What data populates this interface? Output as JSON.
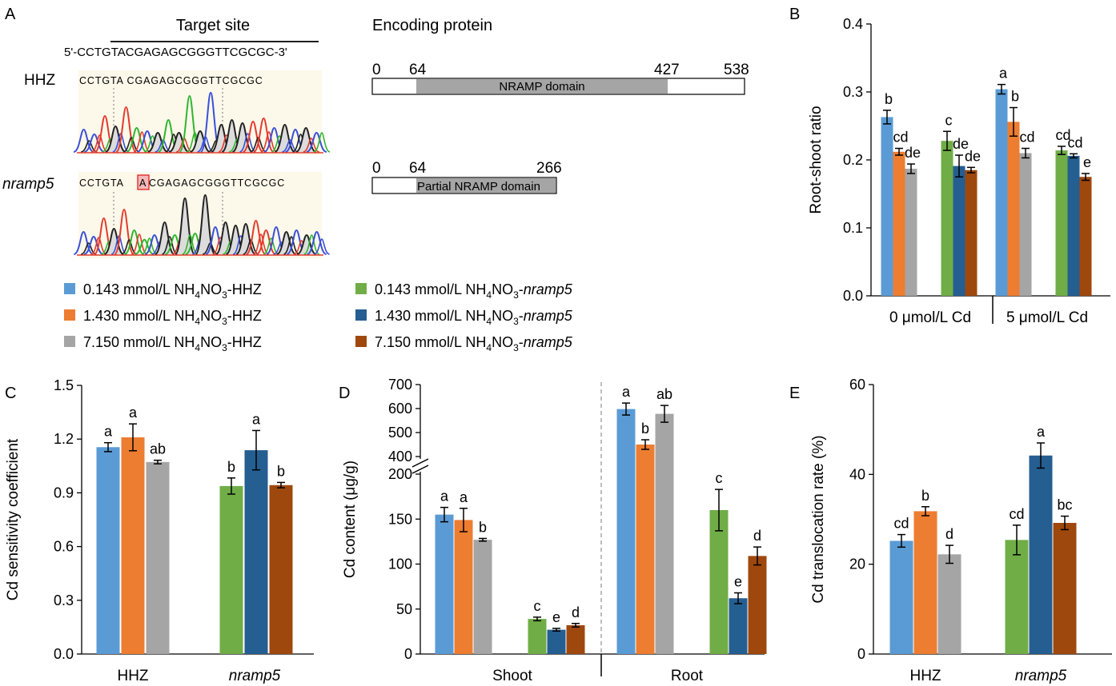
{
  "colors": [
    "#5b9bd5",
    "#ed7d31",
    "#a5a5a5",
    "#70ad47",
    "#255e91",
    "#9e480e"
  ],
  "panel_a": {
    "label": "A",
    "target_title": "Target site",
    "sequence": "5'-CCTGTACGAGAGCGGGTTCGCGC-3'",
    "wt_label": "HHZ",
    "mut_label": "nramp5",
    "wt_chrom_seq": "CCTGTA CGAGAGCGGGTTCGCGC",
    "mut_chrom_seq_1": "CCTGTA",
    "mut_chrom_insert": "A",
    "mut_chrom_seq_2": "CGAGAGCGGGTTCGCGC",
    "protein_title": "Encoding protein",
    "wt_protein": {
      "start": "0",
      "domain_start": "64",
      "domain_end": "427",
      "end": "538",
      "domain_label": "NRAMP domain"
    },
    "mut_protein": {
      "start": "0",
      "domain_start": "64",
      "end": "266",
      "domain_label": "Partial NRAMP domain"
    }
  },
  "legend": [
    {
      "prefix": "0.143 mmol/L NH",
      "sub1": "4",
      "mid": "NO",
      "sub2": "3",
      "suffix": "-HHZ",
      "italic": false
    },
    {
      "prefix": "1.430 mmol/L NH",
      "sub1": "4",
      "mid": "NO",
      "sub2": "3",
      "suffix": "-HHZ",
      "italic": false
    },
    {
      "prefix": "7.150 mmol/L NH",
      "sub1": "4",
      "mid": "NO",
      "sub2": "3",
      "suffix": "-HHZ",
      "italic": false
    },
    {
      "prefix": "0.143 mmol/L NH",
      "sub1": "4",
      "mid": "NO",
      "sub2": "3",
      "suffix": "-",
      "suffix_italic": "nramp5",
      "italic": true
    },
    {
      "prefix": "1.430 mmol/L NH",
      "sub1": "4",
      "mid": "NO",
      "sub2": "3",
      "suffix": "-",
      "suffix_italic": "nramp5",
      "italic": true
    },
    {
      "prefix": "7.150 mmol/L NH",
      "sub1": "4",
      "mid": "NO",
      "sub2": "3",
      "suffix": "-",
      "suffix_italic": "nramp5",
      "italic": true
    }
  ],
  "chart_data": [
    {
      "panel": "B",
      "type": "bar",
      "ylabel": "Root-shoot ratio",
      "ylim": [
        0,
        0.4
      ],
      "yticks": [
        "0.0",
        "0.1",
        "0.2",
        "0.3",
        "0.4"
      ],
      "groups": [
        "0 μmol/L Cd",
        "5 μmol/L Cd"
      ],
      "bars": [
        {
          "group": 0,
          "sub": 0,
          "value": 0.263,
          "err": 0.01,
          "letter": "b"
        },
        {
          "group": 0,
          "sub": 1,
          "value": 0.212,
          "err": 0.005,
          "letter": "cd"
        },
        {
          "group": 0,
          "sub": 2,
          "value": 0.187,
          "err": 0.007,
          "letter": "de"
        },
        {
          "group": 0,
          "sub": 3,
          "value": 0.228,
          "err": 0.014,
          "letter": "c"
        },
        {
          "group": 0,
          "sub": 4,
          "value": 0.191,
          "err": 0.016,
          "letter": "de"
        },
        {
          "group": 0,
          "sub": 5,
          "value": 0.185,
          "err": 0.004,
          "letter": "de"
        },
        {
          "group": 1,
          "sub": 0,
          "value": 0.304,
          "err": 0.007,
          "letter": "a"
        },
        {
          "group": 1,
          "sub": 1,
          "value": 0.256,
          "err": 0.021,
          "letter": "b"
        },
        {
          "group": 1,
          "sub": 2,
          "value": 0.21,
          "err": 0.007,
          "letter": "cd"
        },
        {
          "group": 1,
          "sub": 3,
          "value": 0.214,
          "err": 0.006,
          "letter": "cd"
        },
        {
          "group": 1,
          "sub": 4,
          "value": 0.206,
          "err": 0.003,
          "letter": "cd"
        },
        {
          "group": 1,
          "sub": 5,
          "value": 0.175,
          "err": 0.005,
          "letter": "e"
        }
      ]
    },
    {
      "panel": "C",
      "type": "bar",
      "ylabel": "Cd sensitivity coefficient",
      "ylim": [
        0,
        1.5
      ],
      "yticks": [
        "0.0",
        "0.3",
        "0.6",
        "0.9",
        "1.2",
        "1.5"
      ],
      "groups": [
        "HHZ",
        "nramp5"
      ],
      "bars": [
        {
          "sub": 0,
          "value": 1.155,
          "err": 0.025,
          "letter": "a"
        },
        {
          "sub": 1,
          "value": 1.21,
          "err": 0.075,
          "letter": "a"
        },
        {
          "sub": 2,
          "value": 1.072,
          "err": 0.01,
          "letter": "ab"
        },
        {
          "sub": 3,
          "value": 0.938,
          "err": 0.045,
          "letter": "b"
        },
        {
          "sub": 4,
          "value": 1.138,
          "err": 0.11,
          "letter": "a"
        },
        {
          "sub": 5,
          "value": 0.943,
          "err": 0.015,
          "letter": "b"
        }
      ]
    },
    {
      "panel": "D",
      "type": "bar",
      "ylabel": "Cd content (μg/g)",
      "ylim_lower": [
        0,
        200
      ],
      "ylim_upper": [
        400,
        700
      ],
      "yticks_lower": [
        "0",
        "50",
        "100",
        "150",
        "200"
      ],
      "yticks_upper": [
        "400",
        "500",
        "600",
        "700"
      ],
      "groups": [
        "Shoot",
        "Root"
      ],
      "bars": [
        {
          "group": 0,
          "sub": 0,
          "value": 155,
          "err": 8,
          "letter": "a"
        },
        {
          "group": 0,
          "sub": 1,
          "value": 149,
          "err": 13,
          "letter": "a"
        },
        {
          "group": 0,
          "sub": 2,
          "value": 127,
          "err": 1.5,
          "letter": "b"
        },
        {
          "group": 0,
          "sub": 3,
          "value": 39,
          "err": 2,
          "letter": "c"
        },
        {
          "group": 0,
          "sub": 4,
          "value": 27,
          "err": 1.5,
          "letter": "e"
        },
        {
          "group": 0,
          "sub": 5,
          "value": 32,
          "err": 2,
          "letter": "d"
        },
        {
          "group": 1,
          "sub": 0,
          "value": 598,
          "err": 25,
          "letter": "a"
        },
        {
          "group": 1,
          "sub": 1,
          "value": 450,
          "err": 20,
          "letter": "b"
        },
        {
          "group": 1,
          "sub": 2,
          "value": 578,
          "err": 35,
          "letter": "ab"
        },
        {
          "group": 1,
          "sub": 3,
          "value": 160,
          "err": 23,
          "letter": "c"
        },
        {
          "group": 1,
          "sub": 4,
          "value": 62,
          "err": 6,
          "letter": "e"
        },
        {
          "group": 1,
          "sub": 5,
          "value": 109,
          "err": 10,
          "letter": "d"
        }
      ]
    },
    {
      "panel": "E",
      "type": "bar",
      "ylabel": "Cd translocation rate (%)",
      "ylim": [
        0,
        60
      ],
      "yticks": [
        "0",
        "20",
        "40",
        "60"
      ],
      "groups": [
        "HHZ",
        "nramp5"
      ],
      "bars": [
        {
          "sub": 0,
          "value": 25.2,
          "err": 1.4,
          "letter": "cd"
        },
        {
          "sub": 1,
          "value": 31.8,
          "err": 1.0,
          "letter": "b"
        },
        {
          "sub": 2,
          "value": 22.2,
          "err": 2.0,
          "letter": "d"
        },
        {
          "sub": 3,
          "value": 25.4,
          "err": 3.3,
          "letter": "cd"
        },
        {
          "sub": 4,
          "value": 44.2,
          "err": 2.8,
          "letter": "a"
        },
        {
          "sub": 5,
          "value": 29.2,
          "err": 1.5,
          "letter": "bc"
        }
      ]
    }
  ]
}
